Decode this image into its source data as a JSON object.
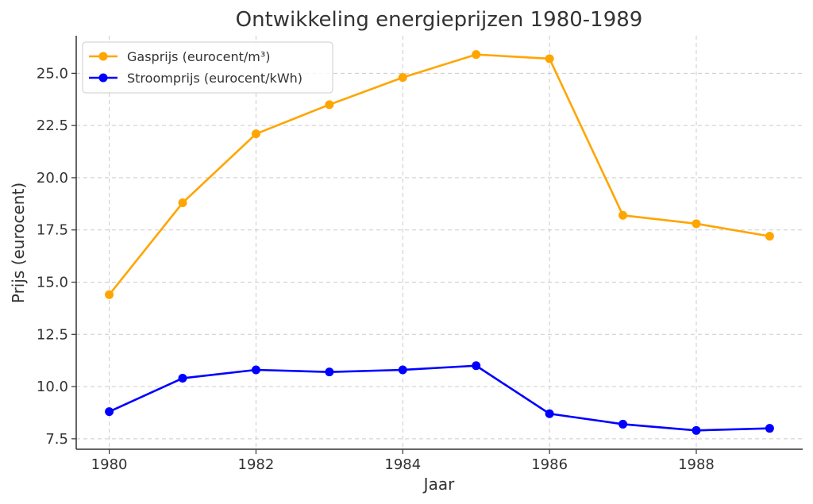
{
  "chart_data": {
    "type": "line",
    "title": "Ontwikkeling energieprijzen 1980-1989",
    "xlabel": "Jaar",
    "ylabel": "Prijs (eurocent)",
    "x": [
      1980,
      1981,
      1982,
      1983,
      1984,
      1985,
      1986,
      1987,
      1988,
      1989
    ],
    "xticks": [
      "1980",
      "1982",
      "1984",
      "1986",
      "1988"
    ],
    "yticks": [
      "7.5",
      "10.0",
      "12.5",
      "15.0",
      "17.5",
      "20.0",
      "22.5",
      "25.0"
    ],
    "xlim": [
      1979.55,
      1989.45
    ],
    "ylim": [
      7.0,
      26.8
    ],
    "grid": true,
    "legend_position": "top-left",
    "series": [
      {
        "name": "Gasprijs (eurocent/m³)",
        "color": "#FFA500",
        "values": [
          14.4,
          18.8,
          22.1,
          23.5,
          24.8,
          25.9,
          25.7,
          18.2,
          17.8,
          17.2
        ]
      },
      {
        "name": "Stroomprijs (eurocent/kWh)",
        "color": "#0000FF",
        "values": [
          8.8,
          10.4,
          10.8,
          10.7,
          10.8,
          11.0,
          8.7,
          8.2,
          7.9,
          8.0
        ]
      }
    ]
  }
}
